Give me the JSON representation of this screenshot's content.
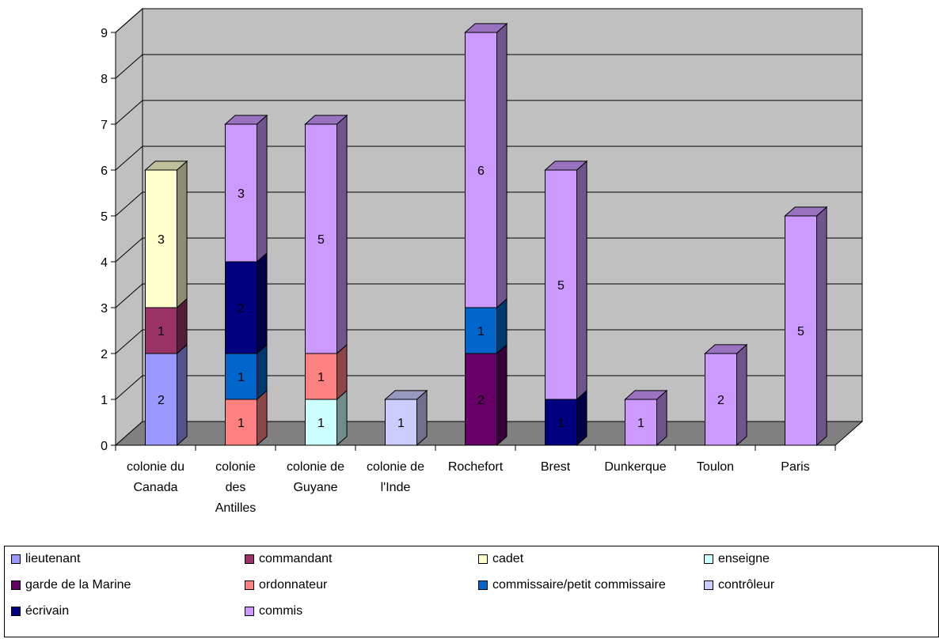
{
  "chart_data": {
    "type": "bar",
    "stacked": true,
    "three_d": true,
    "title": "",
    "xlabel": "",
    "ylabel": "",
    "ylim": [
      0,
      9
    ],
    "yticks": [
      0,
      1,
      2,
      3,
      4,
      5,
      6,
      7,
      8,
      9
    ],
    "grid": true,
    "legend_position": "bottom",
    "categories": [
      [
        "colonie du",
        "Canada"
      ],
      [
        "colonie",
        "des",
        "Antilles"
      ],
      [
        "colonie de",
        "Guyane"
      ],
      [
        "colonie de",
        "l'Inde"
      ],
      [
        "Rochefort"
      ],
      [
        "Brest"
      ],
      [
        "Dunkerque"
      ],
      [
        "Toulon"
      ],
      [
        "Paris"
      ]
    ],
    "series": [
      {
        "name": "lieutenant",
        "color": "#9999ff",
        "values": [
          2,
          0,
          0,
          0,
          0,
          0,
          0,
          0,
          0
        ]
      },
      {
        "name": "commandant",
        "color": "#993366",
        "values": [
          1,
          0,
          0,
          0,
          0,
          0,
          0,
          0,
          0
        ]
      },
      {
        "name": "cadet",
        "color": "#ffffcc",
        "values": [
          3,
          0,
          0,
          0,
          0,
          0,
          0,
          0,
          0
        ]
      },
      {
        "name": "enseigne",
        "color": "#ccffff",
        "values": [
          0,
          0,
          1,
          0,
          0,
          0,
          0,
          0,
          0
        ]
      },
      {
        "name": "garde de la Marine",
        "color": "#660066",
        "values": [
          0,
          0,
          0,
          0,
          2,
          0,
          0,
          0,
          0
        ]
      },
      {
        "name": "ordonnateur",
        "color": "#ff8080",
        "values": [
          0,
          1,
          1,
          0,
          0,
          0,
          0,
          0,
          0
        ]
      },
      {
        "name": "commissaire/petit commissaire",
        "color": "#0066cc",
        "values": [
          0,
          1,
          0,
          0,
          1,
          0,
          0,
          0,
          0
        ]
      },
      {
        "name": "contrôleur",
        "color": "#ccccff",
        "values": [
          0,
          0,
          0,
          1,
          0,
          0,
          0,
          0,
          0
        ]
      },
      {
        "name": "écrivain",
        "color": "#000080",
        "values": [
          0,
          2,
          0,
          0,
          0,
          1,
          0,
          0,
          0
        ]
      },
      {
        "name": "commis",
        "color": "#cc99ff",
        "values": [
          0,
          3,
          5,
          0,
          6,
          5,
          1,
          2,
          5
        ]
      }
    ]
  },
  "colors": {
    "wall": "#c0c0c0",
    "floor": "#808080",
    "grid": "#000000"
  }
}
